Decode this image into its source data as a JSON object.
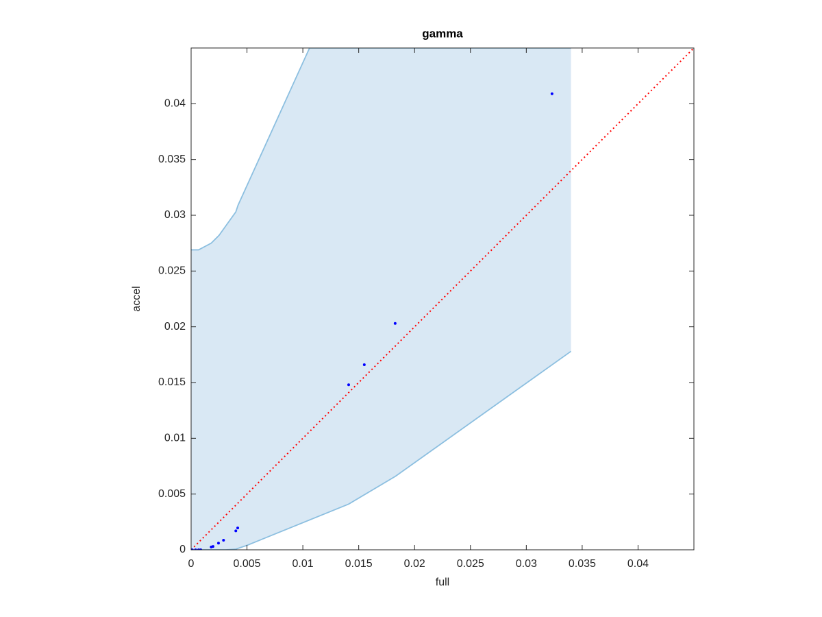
{
  "chart_data": {
    "type": "scatter",
    "title": "gamma",
    "x_label": "full",
    "y_label": "accel",
    "xlim": [
      0,
      0.045
    ],
    "ylim": [
      0,
      0.045
    ],
    "xticks": [
      0,
      0.005,
      0.01,
      0.015,
      0.02,
      0.025,
      0.03,
      0.035,
      0.04
    ],
    "yticks": [
      0,
      0.005,
      0.01,
      0.015,
      0.02,
      0.025,
      0.03,
      0.035,
      0.04
    ],
    "series": [
      {
        "color": "#0000ff",
        "x": [
          0.0323,
          0.01826,
          0.0155,
          0.0141,
          0.00417,
          0.004,
          0.0029,
          0.00245,
          0.00196,
          0.0018,
          0.00086,
          0.00067,
          0.0004,
          0.0001,
          0
        ],
        "values": [
          0.0409,
          0.0203,
          0.0166,
          0.0148,
          0.00196,
          0.0017,
          0.00086,
          0.0006,
          0.0003,
          0.00025,
          0,
          0,
          0,
          0,
          0
        ]
      }
    ],
    "band": {
      "color": "#d9e8f4",
      "edge_color": "#8cbfe0",
      "upper": {
        "x": [
          0,
          0.00067,
          0.0018,
          0.0025,
          0.004,
          0.0042,
          0.0106,
          0.034
        ],
        "y": [
          0.0269,
          0.0269,
          0.0275,
          0.0282,
          0.0303,
          0.0309,
          0.045,
          0.045
        ]
      },
      "lower": {
        "x": [
          0,
          0.0031,
          0.004,
          0.005,
          0.0141,
          0.0183,
          0.034
        ],
        "y": [
          0,
          0,
          6e-05,
          0.0004,
          0.0041,
          0.0066,
          0.0178
        ]
      }
    },
    "reference_line": {
      "x": [
        0,
        0.045
      ],
      "y": [
        0,
        0.045
      ],
      "color": "#ff0000"
    }
  }
}
